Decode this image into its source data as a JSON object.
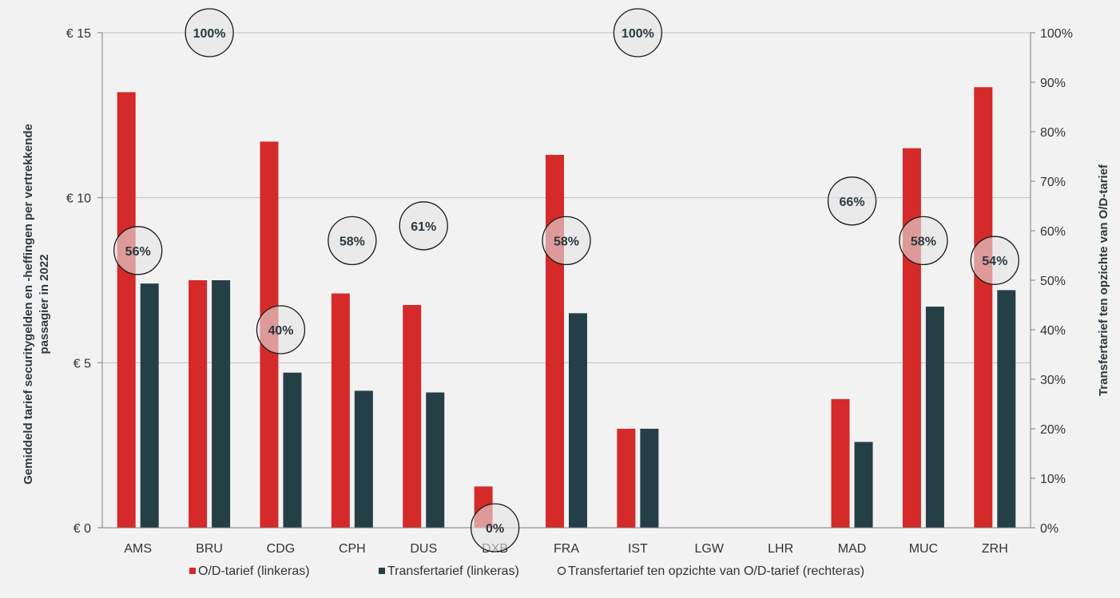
{
  "colors": {
    "od": "#d42a2a",
    "transfer": "#253f47",
    "circle_fill": "#e4e4e4",
    "circle_stroke": "#1a1a1a",
    "grid": "#bfbfbf",
    "axis_text": "#333333",
    "label_text": "#2b3a3f"
  },
  "chart_data": {
    "type": "bar",
    "categories": [
      "AMS",
      "BRU",
      "CDG",
      "CPH",
      "DUS",
      "DXB",
      "FRA",
      "IST",
      "LGW",
      "LHR",
      "MAD",
      "MUC",
      "ZRH"
    ],
    "series": [
      {
        "name": "O/D-tarief (linkeras)",
        "axis": "left",
        "values": [
          13.2,
          7.5,
          11.7,
          7.1,
          6.75,
          1.25,
          11.3,
          3.0,
          0,
          0,
          3.9,
          11.5,
          13.35
        ]
      },
      {
        "name": "Transfertarief (linkeras)",
        "axis": "left",
        "values": [
          7.4,
          7.5,
          4.7,
          4.15,
          4.1,
          0,
          6.5,
          3.0,
          0,
          0,
          2.6,
          6.7,
          7.2
        ]
      },
      {
        "name": "Transfertarief ten opzichte van O/D-tarief (rechteras)",
        "axis": "right",
        "marker": "circle",
        "values": [
          56,
          100,
          40,
          58,
          61,
          0,
          58,
          100,
          null,
          null,
          66,
          58,
          54
        ],
        "labels": [
          "56%",
          "100%",
          "40%",
          "58%",
          "61%",
          "0%",
          "58%",
          "100%",
          "",
          "",
          "66%",
          "58%",
          "54%"
        ]
      }
    ],
    "y_left": {
      "label": "Gemiddeld tarief securitygelden en -heffingen per vertrekkende passagier in 2022",
      "ticks": [
        0,
        5,
        10,
        15
      ],
      "tick_labels": [
        "€ 0",
        "€ 5",
        "€ 10",
        "€ 15"
      ],
      "range": [
        0,
        15
      ]
    },
    "y_right": {
      "label": "Transfertarief ten opzichte van O/D-tarief",
      "ticks": [
        0,
        10,
        20,
        30,
        40,
        50,
        60,
        70,
        80,
        90,
        100
      ],
      "tick_labels": [
        "0%",
        "10%",
        "20%",
        "30%",
        "40%",
        "50%",
        "60%",
        "70%",
        "80%",
        "90%",
        "100%"
      ],
      "range": [
        0,
        100
      ]
    },
    "grid": true,
    "legend_position": "bottom"
  }
}
